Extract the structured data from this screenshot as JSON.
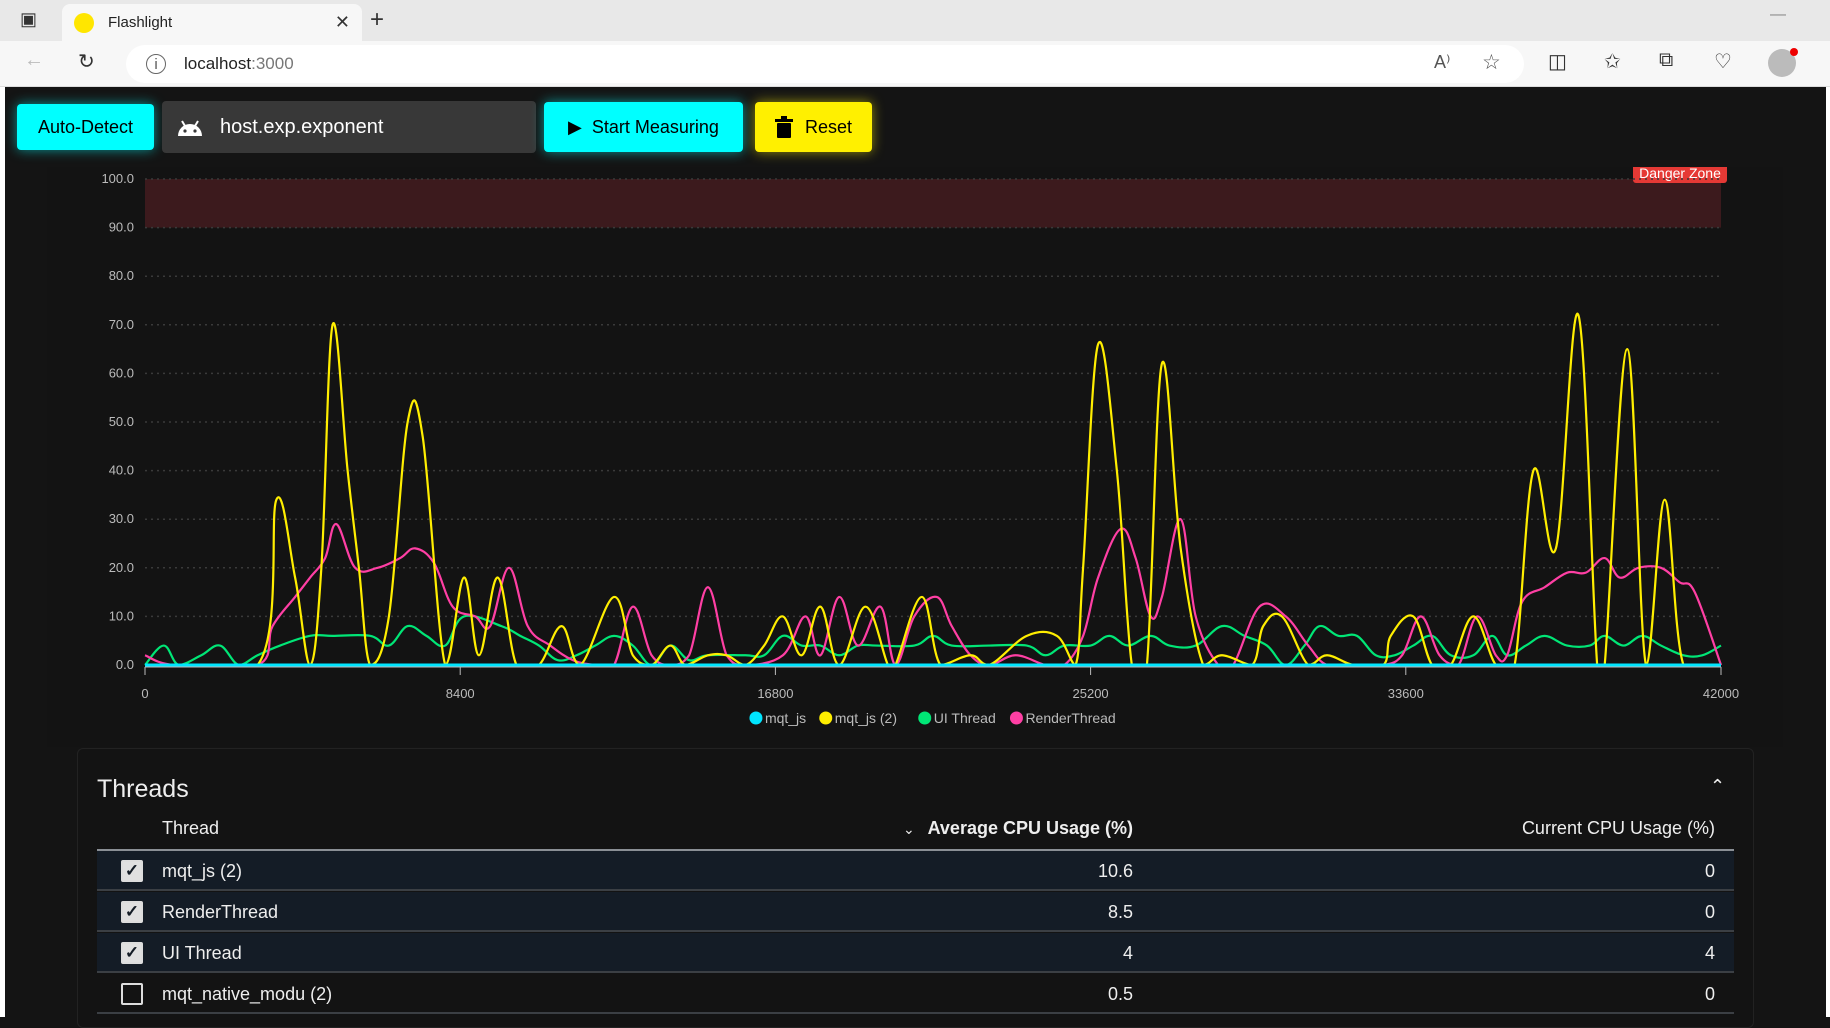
{
  "browser": {
    "tab_title": "Flashlight",
    "url_host": "localhost",
    "url_port": ":3000",
    "icons": [
      "sidebar-icon",
      "close-icon",
      "plus-icon",
      "back-icon",
      "reload-icon",
      "info-icon",
      "read-aloud-icon",
      "favorite-icon",
      "split-screen-icon",
      "favorites-icon",
      "collections-icon",
      "health-icon",
      "profile-icon"
    ]
  },
  "toolbar": {
    "auto_detect_label": "Auto-Detect",
    "device_bundle": "host.exp.exponent",
    "start_label": "Start Measuring",
    "reset_label": "Reset",
    "accent_cyan": "#00ffff",
    "accent_yellow": "#fff000"
  },
  "chart_data": {
    "type": "line",
    "xlim": [
      0,
      42000
    ],
    "ylim": [
      0,
      100
    ],
    "x_ticks": [
      "0",
      "8400",
      "16800",
      "25200",
      "33600",
      "42000"
    ],
    "y_ticks": [
      "0.0",
      "10.0",
      "20.0",
      "30.0",
      "40.0",
      "50.0",
      "60.0",
      "70.0",
      "80.0",
      "90.0",
      "100.0"
    ],
    "grid": true,
    "legend_placement": "bottom",
    "annotation": {
      "label": "Danger Zone",
      "y_range": [
        90,
        100
      ],
      "color": "#e53935"
    },
    "series": [
      {
        "name": "mqt_js",
        "color": "#00e5ff",
        "points": [
          [
            0,
            0
          ],
          [
            42000,
            0
          ]
        ]
      },
      {
        "name": "mqt_js (2)",
        "color": "#ffee00",
        "points": [
          [
            0,
            0
          ],
          [
            3000,
            0
          ],
          [
            3500,
            34
          ],
          [
            4000,
            18
          ],
          [
            4400,
            0
          ],
          [
            4700,
            20
          ],
          [
            5000,
            70
          ],
          [
            5400,
            40
          ],
          [
            5700,
            20
          ],
          [
            6000,
            0
          ],
          [
            6500,
            10
          ],
          [
            7000,
            50
          ],
          [
            7400,
            47
          ],
          [
            8000,
            0
          ],
          [
            8500,
            18
          ],
          [
            8900,
            2
          ],
          [
            9400,
            18
          ],
          [
            9900,
            0
          ],
          [
            10500,
            0
          ],
          [
            11100,
            8
          ],
          [
            11600,
            0
          ],
          [
            12500,
            14
          ],
          [
            13000,
            2
          ],
          [
            13500,
            0
          ],
          [
            14000,
            4
          ],
          [
            14400,
            0
          ],
          [
            15000,
            2
          ],
          [
            15500,
            2
          ],
          [
            16000,
            0
          ],
          [
            16500,
            4
          ],
          [
            17000,
            10
          ],
          [
            17500,
            2
          ],
          [
            18000,
            12
          ],
          [
            18500,
            0
          ],
          [
            19200,
            12
          ],
          [
            19800,
            0
          ],
          [
            20000,
            0
          ],
          [
            20700,
            14
          ],
          [
            21200,
            0
          ],
          [
            22000,
            2
          ],
          [
            22500,
            0
          ],
          [
            23500,
            6
          ],
          [
            24300,
            6
          ],
          [
            24800,
            0
          ],
          [
            25000,
            20
          ],
          [
            25400,
            66
          ],
          [
            25900,
            40
          ],
          [
            26300,
            0
          ],
          [
            26700,
            0
          ],
          [
            27100,
            62
          ],
          [
            27600,
            24
          ],
          [
            28200,
            0
          ],
          [
            28700,
            2
          ],
          [
            29500,
            0
          ],
          [
            29800,
            8
          ],
          [
            30300,
            10
          ],
          [
            31000,
            0
          ],
          [
            31500,
            2
          ],
          [
            32200,
            0
          ],
          [
            33000,
            0
          ],
          [
            33200,
            6
          ],
          [
            33800,
            10
          ],
          [
            34300,
            0
          ],
          [
            34800,
            0
          ],
          [
            35400,
            10
          ],
          [
            36000,
            0
          ],
          [
            36500,
            0
          ],
          [
            37000,
            40
          ],
          [
            37600,
            24
          ],
          [
            38200,
            72
          ],
          [
            38700,
            0
          ],
          [
            38900,
            0
          ],
          [
            39500,
            65
          ],
          [
            40000,
            0
          ],
          [
            40500,
            34
          ],
          [
            41000,
            0
          ],
          [
            42000,
            0
          ]
        ]
      },
      {
        "name": "UI Thread",
        "color": "#00e676",
        "points": [
          [
            0,
            0
          ],
          [
            500,
            4
          ],
          [
            900,
            0
          ],
          [
            1500,
            2
          ],
          [
            2000,
            4
          ],
          [
            2500,
            0
          ],
          [
            3000,
            2
          ],
          [
            3600,
            4
          ],
          [
            4400,
            6
          ],
          [
            5000,
            6
          ],
          [
            6000,
            6
          ],
          [
            6500,
            4
          ],
          [
            7000,
            8
          ],
          [
            7500,
            6
          ],
          [
            8000,
            4
          ],
          [
            8500,
            10
          ],
          [
            9500,
            8
          ],
          [
            10000,
            6
          ],
          [
            10500,
            4
          ],
          [
            11000,
            1
          ],
          [
            11500,
            2
          ],
          [
            12000,
            4
          ],
          [
            12500,
            6
          ],
          [
            13000,
            4
          ],
          [
            13500,
            0
          ],
          [
            14000,
            4
          ],
          [
            14500,
            1
          ],
          [
            15000,
            2
          ],
          [
            16000,
            2
          ],
          [
            16500,
            2
          ],
          [
            17000,
            6
          ],
          [
            17500,
            4
          ],
          [
            18000,
            4
          ],
          [
            18500,
            2
          ],
          [
            19000,
            4
          ],
          [
            19500,
            4
          ],
          [
            20500,
            4
          ],
          [
            21000,
            6
          ],
          [
            21500,
            4
          ],
          [
            22500,
            4
          ],
          [
            23500,
            4
          ],
          [
            24000,
            2
          ],
          [
            24500,
            4
          ],
          [
            25200,
            4
          ],
          [
            25700,
            6
          ],
          [
            26200,
            4
          ],
          [
            26800,
            6
          ],
          [
            27300,
            4
          ],
          [
            28000,
            4
          ],
          [
            28700,
            8
          ],
          [
            29300,
            6
          ],
          [
            29900,
            4
          ],
          [
            30400,
            0
          ],
          [
            30900,
            4
          ],
          [
            31300,
            8
          ],
          [
            31800,
            6
          ],
          [
            32300,
            6
          ],
          [
            32800,
            2
          ],
          [
            33300,
            2
          ],
          [
            33800,
            4
          ],
          [
            34300,
            6
          ],
          [
            34800,
            2
          ],
          [
            35400,
            2
          ],
          [
            35900,
            6
          ],
          [
            36300,
            2
          ],
          [
            36800,
            4
          ],
          [
            37300,
            6
          ],
          [
            37900,
            4
          ],
          [
            38500,
            4
          ],
          [
            38900,
            6
          ],
          [
            39400,
            4
          ],
          [
            39900,
            6
          ],
          [
            40400,
            4
          ],
          [
            41000,
            2
          ],
          [
            41500,
            2
          ],
          [
            42000,
            4
          ]
        ]
      },
      {
        "name": "RenderThread",
        "color": "#ff3fa4",
        "points": [
          [
            0,
            2
          ],
          [
            800,
            0
          ],
          [
            3000,
            0
          ],
          [
            3400,
            8
          ],
          [
            4000,
            14
          ],
          [
            4400,
            18
          ],
          [
            4800,
            22
          ],
          [
            5100,
            29
          ],
          [
            5600,
            20
          ],
          [
            6200,
            20
          ],
          [
            6800,
            22
          ],
          [
            7200,
            24
          ],
          [
            7700,
            21
          ],
          [
            8200,
            12
          ],
          [
            8800,
            10
          ],
          [
            9200,
            8
          ],
          [
            9700,
            20
          ],
          [
            10200,
            8
          ],
          [
            10800,
            4
          ],
          [
            11400,
            1
          ],
          [
            12000,
            0
          ],
          [
            12500,
            0
          ],
          [
            13000,
            12
          ],
          [
            13500,
            2
          ],
          [
            14000,
            0
          ],
          [
            14500,
            2
          ],
          [
            15000,
            16
          ],
          [
            15500,
            2
          ],
          [
            16000,
            0
          ],
          [
            17000,
            2
          ],
          [
            17600,
            10
          ],
          [
            18000,
            2
          ],
          [
            18500,
            14
          ],
          [
            19000,
            4
          ],
          [
            19600,
            12
          ],
          [
            20000,
            0
          ],
          [
            20500,
            10
          ],
          [
            21100,
            14
          ],
          [
            21500,
            8
          ],
          [
            22000,
            2
          ],
          [
            22500,
            0
          ],
          [
            23200,
            2
          ],
          [
            24000,
            0
          ],
          [
            24500,
            0
          ],
          [
            25000,
            6
          ],
          [
            25400,
            18
          ],
          [
            26000,
            28
          ],
          [
            26400,
            22
          ],
          [
            26800,
            10
          ],
          [
            27100,
            14
          ],
          [
            27600,
            30
          ],
          [
            28000,
            10
          ],
          [
            28600,
            0
          ],
          [
            29000,
            0
          ],
          [
            29700,
            12
          ],
          [
            30400,
            10
          ],
          [
            31000,
            4
          ],
          [
            31500,
            0
          ],
          [
            32300,
            0
          ],
          [
            33000,
            0
          ],
          [
            33500,
            2
          ],
          [
            34000,
            10
          ],
          [
            34500,
            2
          ],
          [
            35000,
            0
          ],
          [
            35500,
            10
          ],
          [
            36000,
            2
          ],
          [
            36300,
            2
          ],
          [
            36700,
            13
          ],
          [
            37300,
            16
          ],
          [
            37900,
            19
          ],
          [
            38400,
            19
          ],
          [
            38900,
            22
          ],
          [
            39300,
            18
          ],
          [
            39800,
            20
          ],
          [
            40400,
            20
          ],
          [
            40900,
            17
          ],
          [
            41300,
            15
          ],
          [
            42000,
            0
          ]
        ]
      }
    ]
  },
  "threads": {
    "title": "Threads",
    "columns": {
      "thread": "Thread",
      "avg": "Average CPU Usage (%)",
      "current": "Current CPU Usage (%)"
    },
    "rows": [
      {
        "name": "mqt_js (2)",
        "avg": "10.6",
        "current": "0",
        "checked": true
      },
      {
        "name": "RenderThread",
        "avg": "8.5",
        "current": "0",
        "checked": true
      },
      {
        "name": "UI Thread",
        "avg": "4",
        "current": "4",
        "checked": true
      },
      {
        "name": "mqt_native_modu (2)",
        "avg": "0.5",
        "current": "0",
        "checked": false
      }
    ]
  }
}
